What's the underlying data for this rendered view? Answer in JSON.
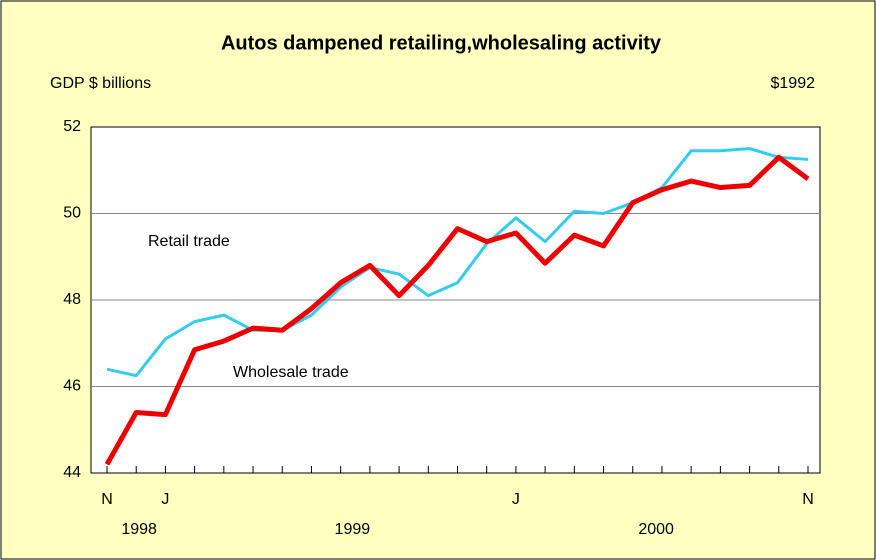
{
  "chart_data": {
    "type": "line",
    "title": "Autos dampened retailing,wholesaling activity",
    "y_label": "GDP $ billions",
    "unit_label": "$1992",
    "categories": [
      "N",
      null,
      "J",
      null,
      null,
      null,
      null,
      null,
      null,
      null,
      null,
      null,
      null,
      null,
      "J",
      null,
      null,
      null,
      null,
      null,
      null,
      null,
      null,
      null,
      "N"
    ],
    "year_labels": [
      "1998",
      "1999",
      "2000"
    ],
    "series": [
      {
        "name": "Retail trade",
        "color": "#33ccee",
        "values": [
          46.4,
          46.25,
          47.1,
          47.5,
          47.65,
          47.3,
          47.3,
          47.65,
          48.3,
          48.75,
          48.6,
          48.1,
          48.4,
          49.3,
          49.9,
          49.35,
          50.05,
          50.0,
          50.25,
          50.6,
          51.45,
          51.45,
          51.5,
          51.3,
          51.25
        ]
      },
      {
        "name": "Wholesale trade",
        "color": "#ee0000",
        "values": [
          44.2,
          45.4,
          45.35,
          46.85,
          47.05,
          47.35,
          47.3,
          47.8,
          48.4,
          48.8,
          48.1,
          48.8,
          49.65,
          49.35,
          49.55,
          48.85,
          49.5,
          49.25,
          50.25,
          50.55,
          50.75,
          50.6,
          50.65,
          51.3,
          50.8
        ]
      }
    ],
    "ylim": [
      44,
      52
    ],
    "yticks": [
      44,
      46,
      48,
      50,
      52
    ],
    "grid": true
  }
}
